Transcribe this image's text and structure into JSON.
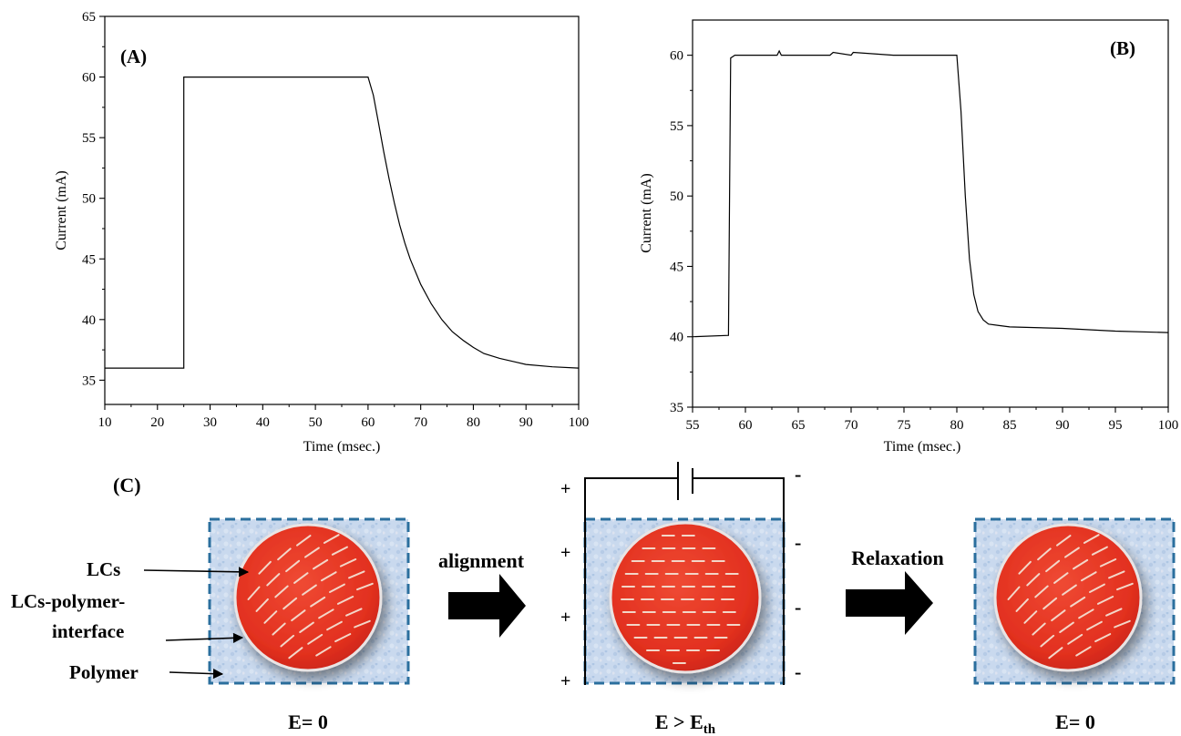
{
  "chart_data": [
    {
      "type": "line",
      "panel_label": "(A)",
      "xlabel": "Time (msec.)",
      "ylabel": "Current (mA)",
      "xlim": [
        10,
        100
      ],
      "ylim": [
        33,
        65
      ],
      "xticks": [
        10,
        20,
        30,
        40,
        50,
        60,
        70,
        80,
        90,
        100
      ],
      "yticks": [
        35,
        40,
        45,
        50,
        55,
        60,
        65
      ],
      "grid": false,
      "series": [
        {
          "color": "#000000",
          "x": [
            10,
            25,
            25,
            34,
            60,
            61,
            62,
            63,
            64,
            65,
            66,
            67,
            68,
            70,
            72,
            74,
            76,
            78,
            80,
            82,
            85,
            88,
            90,
            95,
            100
          ],
          "y": [
            36,
            36,
            60,
            60,
            60,
            58.5,
            56.2,
            53.8,
            51.6,
            49.6,
            47.8,
            46.3,
            45.0,
            42.9,
            41.3,
            40.0,
            39.0,
            38.3,
            37.7,
            37.2,
            36.8,
            36.5,
            36.3,
            36.1,
            36.0
          ]
        }
      ]
    },
    {
      "type": "line",
      "panel_label": "(B)",
      "xlabel": "Time (msec.)",
      "ylabel": "Current (mA)",
      "xlim": [
        55,
        100
      ],
      "ylim": [
        35,
        62.5
      ],
      "xticks": [
        55,
        60,
        65,
        70,
        75,
        80,
        85,
        90,
        95,
        100
      ],
      "yticks": [
        35,
        40,
        45,
        50,
        55,
        60
      ],
      "grid": false,
      "series": [
        {
          "color": "#000000",
          "x": [
            55,
            58.4,
            58.6,
            59,
            63,
            63.2,
            63.4,
            68,
            68.3,
            70,
            70.2,
            74,
            80,
            80.4,
            80.8,
            81.2,
            81.6,
            82,
            82.5,
            83,
            84,
            85,
            90,
            95,
            100
          ],
          "y": [
            40,
            40.1,
            59.8,
            60,
            60,
            60.3,
            60,
            60,
            60.2,
            60,
            60.2,
            60,
            60,
            56,
            50,
            45.5,
            43,
            41.8,
            41.2,
            40.9,
            40.8,
            40.7,
            40.6,
            40.4,
            40.3
          ]
        }
      ]
    }
  ],
  "diagram": {
    "panel_label": "(C)",
    "labels": {
      "lcs": "LCs",
      "interface_line1": "LCs-polymer-",
      "interface_line2": "interface",
      "polymer": "Polymer",
      "alignment": "alignment",
      "relaxation": "Relaxation"
    },
    "conditions": {
      "left": "E= 0",
      "middle_main": "E > E",
      "middle_sub": "th",
      "right": "E= 0"
    },
    "signs": {
      "plus": "+",
      "minus": "-"
    },
    "colors": {
      "droplet": "#e53322",
      "polymer": "#c7d7ec",
      "border": "#2b6f9e",
      "director": "#f3d6c8"
    }
  }
}
